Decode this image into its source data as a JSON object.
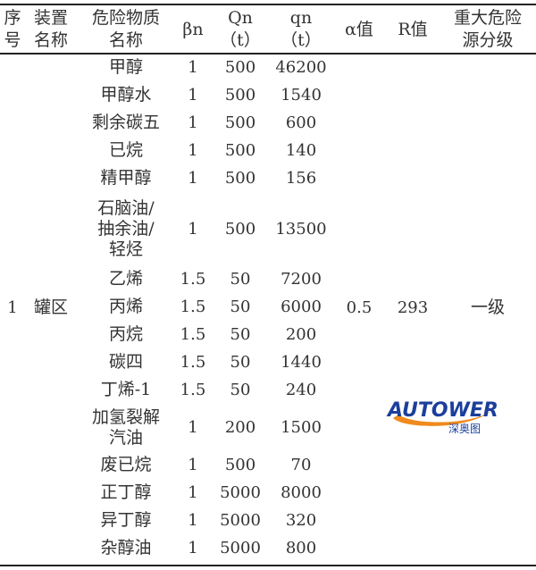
{
  "headers": [
    "序号",
    "装置名称",
    "危险物质名称",
    "βn",
    "Qn（t）",
    "qn（t）",
    "α值",
    "R值",
    "重大危险源分级"
  ],
  "header_lines": {
    "seq": [
      "序",
      "号"
    ],
    "unit": [
      "装置",
      "名称"
    ],
    "substance": [
      "危险物质",
      "名称"
    ],
    "beta": "βn",
    "Qn": [
      "Qn",
      "（t）"
    ],
    "qn": [
      "qn",
      "（t）"
    ],
    "alpha": "α值",
    "R": "R值",
    "grade": [
      "重大危险",
      "源分级"
    ]
  },
  "group": {
    "seq": "1",
    "unit": "罐区",
    "alpha": "0.5",
    "R": "293",
    "grade": "一级"
  },
  "rows": [
    {
      "name": "甲醇",
      "beta": "1",
      "Qn": "500",
      "qn": "46200"
    },
    {
      "name": "甲醇水",
      "beta": "1",
      "Qn": "500",
      "qn": "1540"
    },
    {
      "name": "剩余碳五",
      "beta": "1",
      "Qn": "500",
      "qn": "600"
    },
    {
      "name": "已烷",
      "beta": "1",
      "Qn": "500",
      "qn": "140"
    },
    {
      "name": "精甲醇",
      "beta": "1",
      "Qn": "500",
      "qn": "156"
    },
    {
      "name": "石脑油/抽余油/轻烃",
      "beta": "1",
      "Qn": "500",
      "qn": "13500"
    },
    {
      "name": "乙烯",
      "beta": "1.5",
      "Qn": "50",
      "qn": "7200"
    },
    {
      "name": "丙烯",
      "beta": "1.5",
      "Qn": "50",
      "qn": "6000"
    },
    {
      "name": "丙烷",
      "beta": "1.5",
      "Qn": "50",
      "qn": "200"
    },
    {
      "name": "碳四",
      "beta": "1.5",
      "Qn": "50",
      "qn": "1440"
    },
    {
      "name": "丁烯-1",
      "beta": "1.5",
      "Qn": "50",
      "qn": "240"
    },
    {
      "name": "加氢裂解汽油",
      "beta": "1",
      "Qn": "200",
      "qn": "1500"
    },
    {
      "name": "废已烷",
      "beta": "1",
      "Qn": "500",
      "qn": "70"
    },
    {
      "name": "正丁醇",
      "beta": "1",
      "Qn": "5000",
      "qn": "8000"
    },
    {
      "name": "异丁醇",
      "beta": "1",
      "Qn": "5000",
      "qn": "320"
    },
    {
      "name": "杂醇油",
      "beta": "1",
      "Qn": "5000",
      "qn": "800"
    }
  ],
  "name_lines": {
    "5": [
      "石脑油/",
      "抽余油/",
      "轻烃"
    ],
    "11": [
      "加氢裂解",
      "汽油"
    ]
  },
  "watermark": {
    "text": "AUTOWER",
    "subtext": "深奥图",
    "colors": {
      "blue": "#1c3f9c",
      "orange": "#f08a1c"
    }
  }
}
